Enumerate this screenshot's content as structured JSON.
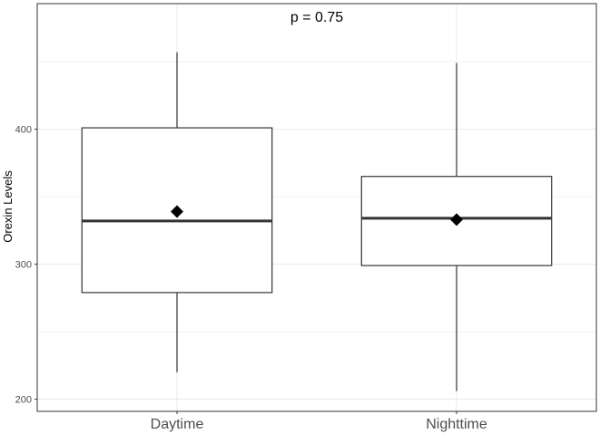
{
  "chart_data": {
    "type": "box",
    "categories": [
      "Daytime",
      "Nighttime"
    ],
    "boxes": [
      {
        "category": "Daytime",
        "whisker_low": 220,
        "q1": 279,
        "median": 332,
        "q3": 401,
        "whisker_high": 457,
        "mean": 339
      },
      {
        "category": "Nighttime",
        "whisker_low": 206,
        "q1": 299,
        "median": 334,
        "q3": 365,
        "whisker_high": 449,
        "mean": 333
      }
    ],
    "ylabel": "Orexin Levels",
    "xlabel": "",
    "yticks": [
      200,
      300,
      400
    ],
    "ylim": [
      191,
      493
    ],
    "annotation": "p = 0.75",
    "grid": true,
    "colors": {
      "box_fill": "#ffffff",
      "box_stroke": "#333333",
      "mean_marker": "#000000",
      "grid": "#ebebeb",
      "panel_border": "#333333"
    }
  }
}
